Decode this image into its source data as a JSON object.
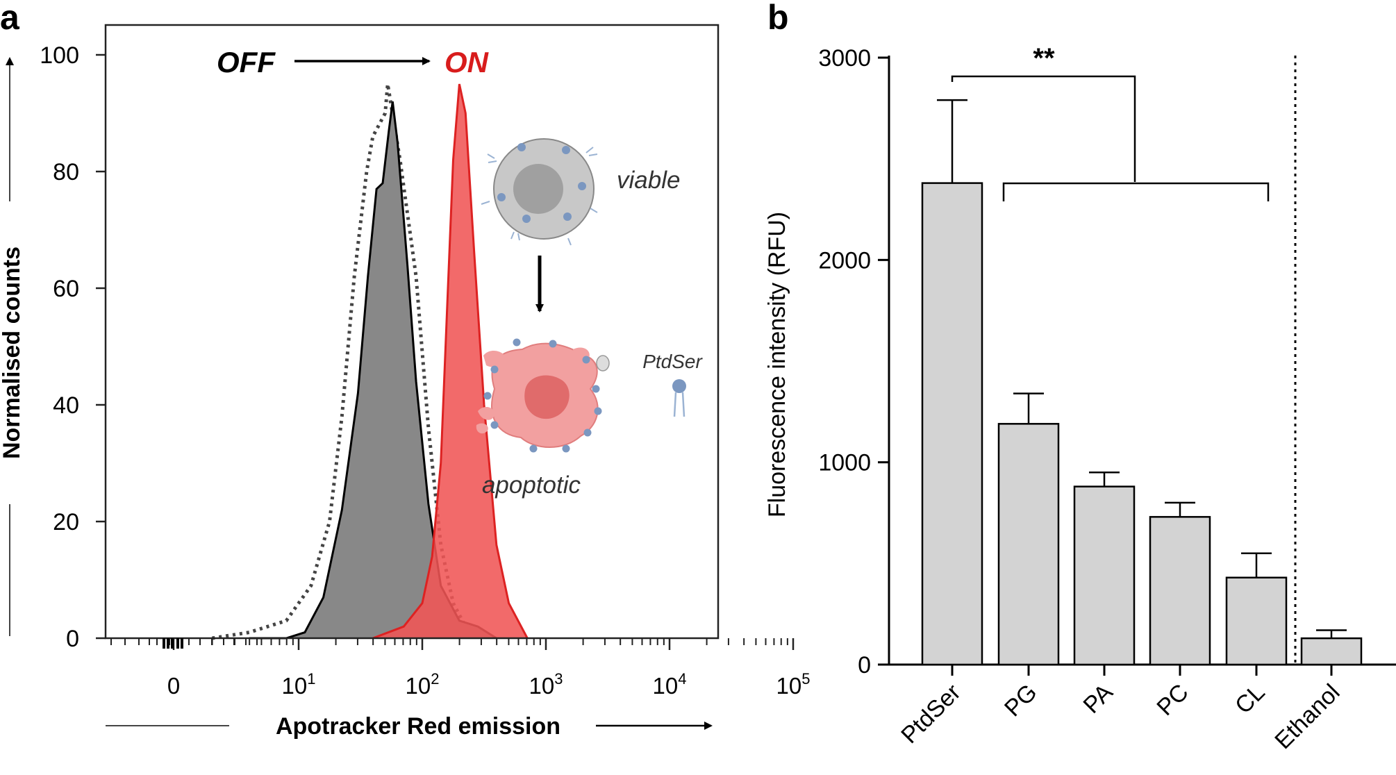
{
  "chart_data": [
    {
      "panel": "a",
      "type": "line",
      "title": "",
      "xlabel": "Apotracker Red emission",
      "ylabel": "Normalised counts",
      "xscale": "biexponential (log with zero)",
      "xticks": [
        "0",
        "10",
        "10",
        "10",
        "10",
        "10"
      ],
      "xtick_exponents": [
        "",
        "1",
        "2",
        "3",
        "4",
        "5"
      ],
      "yticks": [
        "0",
        "20",
        "40",
        "60",
        "80",
        "100"
      ],
      "ylim": [
        0,
        100
      ],
      "annotation_off": "OFF",
      "annotation_on": "ON",
      "series": [
        {
          "style": "dotted",
          "color": "#444444",
          "fill": "none",
          "points": [
            [
              0.3,
              0
            ],
            [
              0.6,
              1
            ],
            [
              0.9,
              3
            ],
            [
              1.1,
              9
            ],
            [
              1.25,
              20
            ],
            [
              1.35,
              38
            ],
            [
              1.45,
              62
            ],
            [
              1.55,
              80
            ],
            [
              1.6,
              86
            ],
            [
              1.7,
              90
            ],
            [
              1.72,
              95
            ],
            [
              1.82,
              82
            ],
            [
              1.95,
              62
            ],
            [
              2.05,
              36
            ],
            [
              2.15,
              16
            ],
            [
              2.25,
              6
            ],
            [
              2.35,
              2
            ],
            [
              2.5,
              0
            ]
          ]
        },
        {
          "style": "solid",
          "color": "#000000",
          "fill": "#888888",
          "points": [
            [
              0.6,
              0
            ],
            [
              0.9,
              0
            ],
            [
              1.05,
              1
            ],
            [
              1.2,
              7
            ],
            [
              1.35,
              22
            ],
            [
              1.48,
              42
            ],
            [
              1.56,
              62
            ],
            [
              1.63,
              77
            ],
            [
              1.68,
              78
            ],
            [
              1.73,
              87
            ],
            [
              1.76,
              92
            ],
            [
              1.8,
              85
            ],
            [
              1.88,
              64
            ],
            [
              1.95,
              44
            ],
            [
              2.05,
              23
            ],
            [
              2.15,
              9
            ],
            [
              2.3,
              3
            ],
            [
              2.45,
              2
            ],
            [
              2.6,
              0
            ]
          ]
        },
        {
          "style": "solid",
          "color": "#dd2222",
          "fill": "#f05555",
          "points": [
            [
              1.6,
              0
            ],
            [
              1.85,
              2
            ],
            [
              2.0,
              6
            ],
            [
              2.08,
              14
            ],
            [
              2.15,
              30
            ],
            [
              2.2,
              56
            ],
            [
              2.25,
              82
            ],
            [
              2.3,
              95
            ],
            [
              2.35,
              90
            ],
            [
              2.42,
              66
            ],
            [
              2.5,
              40
            ],
            [
              2.6,
              16
            ],
            [
              2.7,
              6
            ],
            [
              2.85,
              0
            ]
          ]
        }
      ],
      "inset": {
        "top_label": "viable",
        "bottom_label": "apoptotic",
        "lipid_label": "PtdSer"
      }
    },
    {
      "panel": "b",
      "type": "bar",
      "title": "",
      "xlabel": "",
      "ylabel": "Fluorescence intensity (RFU)",
      "ylim": [
        0,
        3000
      ],
      "yticks": [
        0,
        1000,
        2000,
        3000
      ],
      "categories": [
        "PtdSer",
        "PG",
        "PA",
        "PC",
        "CL",
        "Ethanol"
      ],
      "values": [
        2380,
        1190,
        880,
        730,
        430,
        130
      ],
      "errors": [
        410,
        150,
        70,
        70,
        120,
        40
      ],
      "bar_color": "#d3d3d3",
      "significance": "**"
    }
  ],
  "labels": {
    "panel_a": "a",
    "panel_b": "b"
  }
}
